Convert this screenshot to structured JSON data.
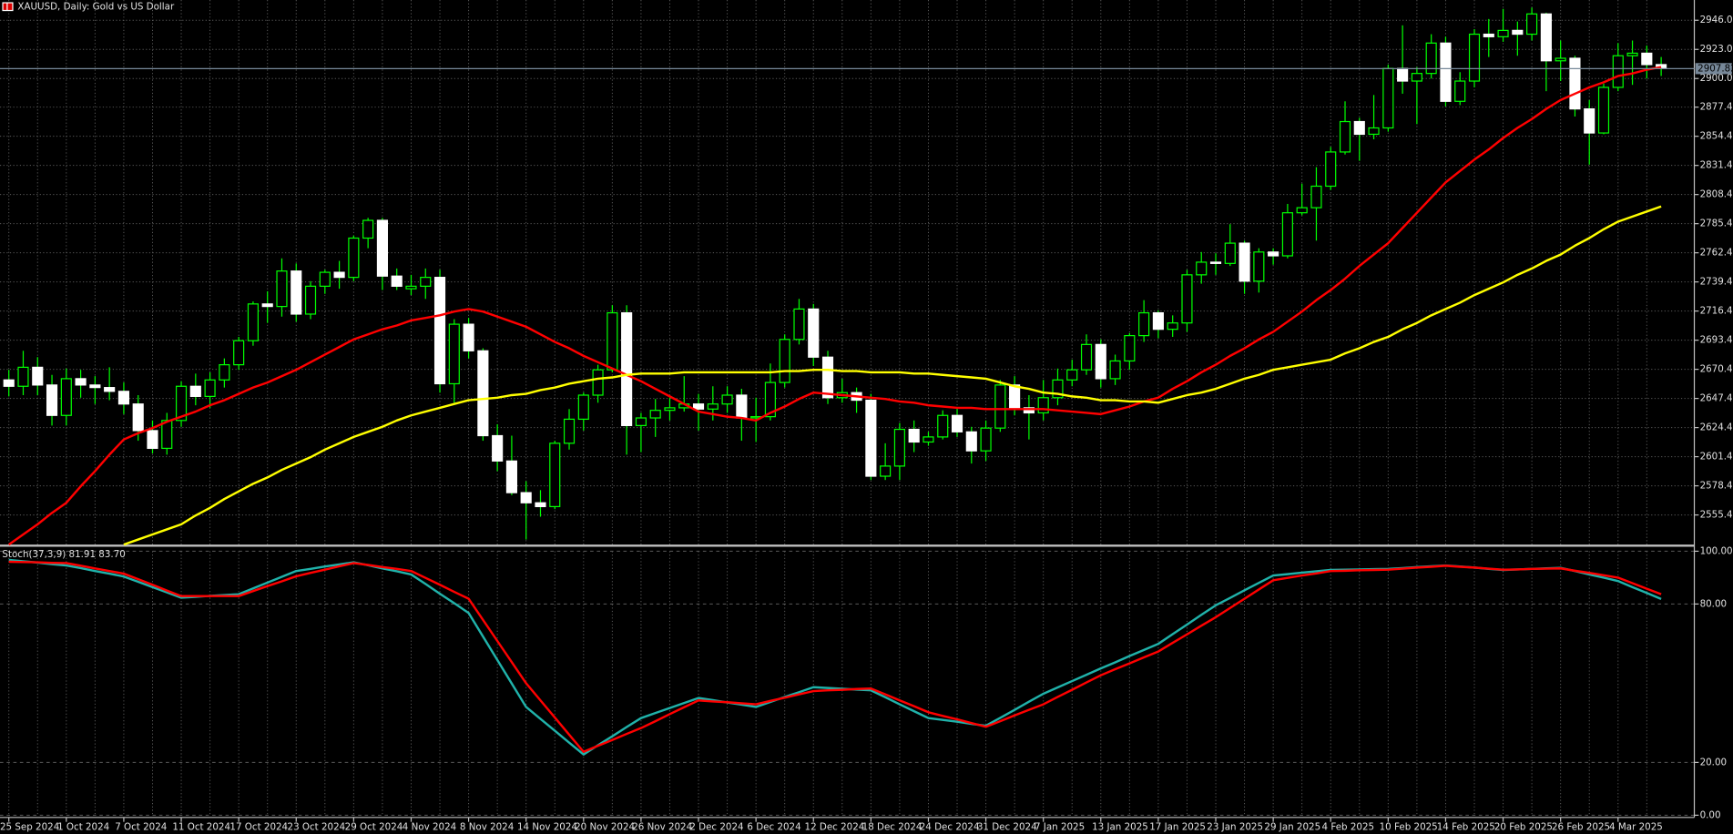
{
  "chart_data": [
    {
      "type": "candlestick",
      "title": "XAUUSD, Daily: Gold vs US Dollar",
      "categories": [
        "25 Sep 2024",
        null,
        null,
        null,
        "1 Oct 2024",
        null,
        null,
        null,
        "7 Oct 2024",
        null,
        null,
        null,
        "11 Oct 2024",
        null,
        null,
        null,
        "17 Oct 2024",
        null,
        null,
        null,
        "23 Oct 2024",
        null,
        null,
        null,
        "29 Oct 2024",
        null,
        null,
        null,
        "4 Nov 2024",
        null,
        null,
        null,
        "8 Nov 2024",
        null,
        null,
        null,
        "14 Nov 2024",
        null,
        null,
        null,
        "20 Nov 2024",
        null,
        null,
        null,
        "26 Nov 2024",
        null,
        null,
        null,
        "2 Dec 2024",
        null,
        null,
        null,
        "6 Dec 2024",
        null,
        null,
        null,
        "12 Dec 2024",
        null,
        null,
        null,
        "18 Dec 2024",
        null,
        null,
        null,
        "24 Dec 2024",
        null,
        null,
        null,
        "31 Dec 2024",
        null,
        null,
        null,
        "7 Jan 2025",
        null,
        null,
        null,
        "13 Jan 2025",
        null,
        null,
        null,
        "17 Jan 2025",
        null,
        null,
        null,
        "23 Jan 2025",
        null,
        null,
        null,
        "29 Jan 2025",
        null,
        null,
        null,
        "4 Feb 2025",
        null,
        null,
        null,
        "10 Feb 2025",
        null,
        null,
        null,
        "14 Feb 2025",
        null,
        null,
        null,
        "20 Feb 2025",
        null,
        null,
        null,
        "26 Feb 2025",
        null,
        null,
        null,
        "4 Mar 2025",
        null,
        null,
        null
      ],
      "open": [
        2662,
        2657,
        2672,
        2658,
        2634,
        2663,
        2658,
        2656,
        2653,
        2643,
        2622,
        2608,
        2630,
        2657,
        2649,
        2662,
        2674,
        2693,
        2722,
        2720,
        2748,
        2714,
        2736,
        2747,
        2743,
        2774,
        2788,
        2744,
        2734,
        2736,
        2743,
        2659,
        2706,
        2685,
        2618,
        2598,
        2573,
        2565,
        2562,
        2612,
        2631,
        2650,
        2670,
        2715,
        2626,
        2632,
        2638,
        2640,
        2643,
        2639,
        2643,
        2650,
        2632,
        2633,
        2660,
        2694,
        2718,
        2680,
        2648,
        2652,
        2646,
        2586,
        2594,
        2623,
        2613,
        2617,
        2634,
        2621,
        2606,
        2624,
        2658,
        2640,
        2636,
        2648,
        2662,
        2670,
        2690,
        2663,
        2677,
        2697,
        2715,
        2702,
        2707,
        2745,
        2755,
        2754,
        2770,
        2740,
        2763,
        2760,
        2794,
        2798,
        2815,
        2842,
        2866,
        2856,
        2861,
        2908,
        2898,
        2904,
        2928,
        2882,
        2898,
        2935,
        2933,
        2938,
        2935,
        2951,
        2914,
        2916,
        2876,
        2857,
        2893,
        2918,
        2920,
        2911
      ],
      "high": [
        2670,
        2685,
        2680,
        2666,
        2671,
        2670,
        2665,
        2672,
        2660,
        2650,
        2630,
        2636,
        2661,
        2667,
        2668,
        2679,
        2696,
        2724,
        2732,
        2758,
        2754,
        2740,
        2749,
        2756,
        2776,
        2790,
        2790,
        2750,
        2745,
        2750,
        2749,
        2710,
        2711,
        2687,
        2627,
        2618,
        2582,
        2575,
        2614,
        2639,
        2652,
        2674,
        2721,
        2721,
        2636,
        2647,
        2648,
        2665,
        2651,
        2657,
        2657,
        2655,
        2648,
        2675,
        2698,
        2726,
        2722,
        2685,
        2663,
        2656,
        2651,
        2612,
        2628,
        2630,
        2621,
        2638,
        2640,
        2625,
        2630,
        2662,
        2665,
        2650,
        2662,
        2671,
        2678,
        2698,
        2694,
        2682,
        2699,
        2725,
        2717,
        2713,
        2749,
        2763,
        2762,
        2785,
        2772,
        2766,
        2766,
        2801,
        2817,
        2830,
        2846,
        2882,
        2869,
        2887,
        2911,
        2942,
        2909,
        2935,
        2933,
        2905,
        2939,
        2947,
        2955,
        2945,
        2956,
        2952,
        2930,
        2918,
        2883,
        2896,
        2928,
        2930,
        2926,
        2917
      ],
      "low": [
        2649,
        2650,
        2650,
        2626,
        2626,
        2648,
        2643,
        2646,
        2635,
        2614,
        2604,
        2603,
        2625,
        2642,
        2640,
        2656,
        2670,
        2689,
        2707,
        2712,
        2708,
        2710,
        2730,
        2734,
        2740,
        2766,
        2733,
        2733,
        2729,
        2726,
        2652,
        2644,
        2679,
        2614,
        2590,
        2571,
        2536,
        2554,
        2560,
        2607,
        2622,
        2644,
        2668,
        2603,
        2605,
        2617,
        2630,
        2637,
        2622,
        2630,
        2636,
        2614,
        2613,
        2630,
        2656,
        2690,
        2673,
        2643,
        2644,
        2636,
        2583,
        2583,
        2583,
        2605,
        2610,
        2615,
        2617,
        2596,
        2598,
        2621,
        2634,
        2615,
        2630,
        2642,
        2657,
        2666,
        2656,
        2658,
        2670,
        2692,
        2695,
        2696,
        2700,
        2738,
        2745,
        2752,
        2730,
        2731,
        2753,
        2758,
        2792,
        2772,
        2812,
        2840,
        2835,
        2852,
        2858,
        2888,
        2864,
        2900,
        2878,
        2879,
        2893,
        2917,
        2929,
        2918,
        2930,
        2890,
        2898,
        2870,
        2832,
        2856,
        2890,
        2895,
        2900,
        2902
      ],
      "close": [
        2657,
        2672,
        2658,
        2634,
        2663,
        2658,
        2656,
        2653,
        2643,
        2622,
        2608,
        2630,
        2657,
        2649,
        2662,
        2674,
        2693,
        2722,
        2720,
        2748,
        2714,
        2736,
        2747,
        2743,
        2774,
        2788,
        2744,
        2736,
        2736,
        2743,
        2659,
        2706,
        2685,
        2618,
        2598,
        2573,
        2565,
        2562,
        2612,
        2631,
        2650,
        2670,
        2715,
        2626,
        2632,
        2638,
        2640,
        2643,
        2639,
        2643,
        2650,
        2632,
        2633,
        2660,
        2694,
        2718,
        2680,
        2648,
        2652,
        2646,
        2586,
        2594,
        2623,
        2613,
        2617,
        2634,
        2621,
        2606,
        2624,
        2658,
        2640,
        2636,
        2648,
        2662,
        2670,
        2690,
        2663,
        2677,
        2697,
        2715,
        2702,
        2707,
        2745,
        2755,
        2754,
        2770,
        2740,
        2763,
        2760,
        2794,
        2798,
        2815,
        2842,
        2866,
        2856,
        2861,
        2908,
        2898,
        2904,
        2928,
        2882,
        2898,
        2935,
        2933,
        2938,
        2935,
        2951,
        2914,
        2916,
        2876,
        2857,
        2893,
        2918,
        2920,
        2911,
        2907.82
      ],
      "up_color": "#00ff00",
      "down_color": "#ffffff",
      "series": [
        {
          "color": "#ff0000",
          "values": [
            2532,
            2540,
            2548,
            2557,
            2565,
            2578,
            2590,
            2603,
            2615,
            2620,
            2624,
            2629,
            2633,
            2637,
            2642,
            2646,
            2651,
            2656,
            2660,
            2665,
            2670,
            2676,
            2682,
            2688,
            2694,
            2698,
            2702,
            2705,
            2709,
            2711,
            2713,
            2716,
            2718,
            2716,
            2712,
            2708,
            2704,
            2698,
            2692,
            2687,
            2681,
            2676,
            2671,
            2666,
            2661,
            2655,
            2649,
            2643,
            2637,
            2635,
            2633,
            2632,
            2630,
            2636,
            2641,
            2647,
            2652,
            2651,
            2650,
            2649,
            2648,
            2647,
            2645,
            2644,
            2642,
            2641,
            2640,
            2640,
            2639,
            2639,
            2639,
            2639,
            2639,
            2638,
            2637,
            2636,
            2635,
            2638,
            2641,
            2645,
            2648,
            2655,
            2661,
            2668,
            2674,
            2681,
            2687,
            2694,
            2700,
            2708,
            2716,
            2725,
            2733,
            2742,
            2752,
            2761,
            2770,
            2782,
            2794,
            2806,
            2818,
            2827,
            2836,
            2844,
            2853,
            2861,
            2868,
            2876,
            2883,
            2888,
            2893,
            2897,
            2902,
            2904,
            2907,
            2909
          ]
        },
        {
          "color": "#ffff00",
          "values": [
            null,
            null,
            null,
            null,
            null,
            null,
            null,
            null,
            2532,
            2536,
            2540,
            2544,
            2548,
            2555,
            2561,
            2568,
            2574,
            2580,
            2585,
            2591,
            2596,
            2601,
            2607,
            2612,
            2617,
            2621,
            2625,
            2630,
            2634,
            2637,
            2640,
            2643,
            2646,
            2647,
            2648,
            2650,
            2651,
            2654,
            2656,
            2659,
            2661,
            2663,
            2664,
            2666,
            2667,
            2667,
            2667,
            2668,
            2668,
            2668,
            2668,
            2668,
            2668,
            2668,
            2669,
            2669,
            2670,
            2670,
            2669,
            2669,
            2668,
            2668,
            2668,
            2667,
            2667,
            2666,
            2665,
            2664,
            2663,
            2660,
            2657,
            2655,
            2652,
            2651,
            2649,
            2648,
            2646,
            2646,
            2645,
            2645,
            2644,
            2647,
            2650,
            2652,
            2655,
            2659,
            2663,
            2666,
            2670,
            2672,
            2674,
            2676,
            2678,
            2683,
            2687,
            2692,
            2696,
            2702,
            2707,
            2713,
            2718,
            2723,
            2729,
            2734,
            2739,
            2745,
            2750,
            2756,
            2761,
            2768,
            2774,
            2781,
            2787,
            2791,
            2795,
            2799
          ]
        }
      ],
      "current_price": 2907.82,
      "ylim": [
        2532,
        2962
      ],
      "yticks": [
        {
          "value": 2946,
          "label": "2946.00"
        },
        {
          "value": 2923,
          "label": "2923.00"
        },
        {
          "value": 2900,
          "label": "2900.00"
        },
        {
          "value": 2877.4,
          "label": "2877.40"
        },
        {
          "value": 2854.4,
          "label": "2854.40"
        },
        {
          "value": 2831.4,
          "label": "2831.40"
        },
        {
          "value": 2808.4,
          "label": "2808.40"
        },
        {
          "value": 2785.4,
          "label": "2785.40"
        },
        {
          "value": 2762.4,
          "label": "2762.40"
        },
        {
          "value": 2739.4,
          "label": "2739.40"
        },
        {
          "value": 2716.4,
          "label": "2716.40"
        },
        {
          "value": 2693.4,
          "label": "2693.40"
        },
        {
          "value": 2670.4,
          "label": "2670.40"
        },
        {
          "value": 2647.4,
          "label": "2647.40"
        },
        {
          "value": 2624.4,
          "label": "2624.40"
        },
        {
          "value": 2601.4,
          "label": "2601.40"
        },
        {
          "value": 2578.4,
          "label": "2578.40"
        },
        {
          "value": 2555.4,
          "label": "2555.40"
        }
      ],
      "grid": true
    },
    {
      "type": "line",
      "title": "Stoch(37,3,9) 81.91 83.70",
      "series": [
        {
          "color": "#20b2aa",
          "values": [
            96.7,
            96.2,
            95.7,
            95.1,
            94.6,
            93.6,
            92.5,
            91.5,
            90.4,
            88.4,
            86.4,
            84.4,
            82.4,
            82.7,
            83.1,
            83.4,
            83.7,
            85.9,
            88.1,
            90.3,
            92.5,
            93.3,
            94.2,
            95.0,
            95.8,
            94.7,
            93.5,
            92.4,
            91.2,
            87.6,
            83.9,
            80.3,
            76.6,
            67.7,
            58.8,
            49.9,
            41,
            36.5,
            32,
            27.5,
            23,
            26.5,
            29.9,
            33.4,
            36.8,
            38.7,
            40.6,
            42.5,
            44.4,
            43.6,
            42.7,
            41.9,
            41,
            42.9,
            44.8,
            46.6,
            48.5,
            48.2,
            47.9,
            47.6,
            47.3,
            44.7,
            42,
            39.4,
            36.8,
            36.1,
            35.4,
            34.6,
            33.9,
            36.9,
            39.9,
            43,
            46,
            48.4,
            50.8,
            53.2,
            55.6,
            57.9,
            60.3,
            62.6,
            64.9,
            68.6,
            72.2,
            75.9,
            79.5,
            82.3,
            85.2,
            88,
            90.8,
            91.3,
            91.9,
            92.4,
            92.9,
            93,
            93.1,
            93.2,
            93.3,
            93.6,
            94,
            94.3,
            94.6,
            94.2,
            93.8,
            93.3,
            92.9,
            93.1,
            93.3,
            93.5,
            93.7,
            92.5,
            91.2,
            90,
            88.7,
            86.4,
            84.2,
            81.91
          ]
        },
        {
          "color": "#ff0000",
          "values": [
            96,
            95.9,
            95.8,
            95.6,
            95.5,
            94.5,
            93.5,
            92.5,
            91.5,
            89.4,
            87.3,
            85.1,
            83,
            83,
            83,
            83,
            83,
            84.9,
            86.8,
            88.6,
            90.5,
            91.8,
            93,
            94.3,
            95.5,
            94.8,
            94,
            93.3,
            92.5,
            89.9,
            87.3,
            84.6,
            82,
            74,
            66,
            58,
            50,
            43.5,
            37,
            30.5,
            24,
            26.3,
            28.5,
            30.8,
            33,
            35.6,
            38.3,
            40.9,
            43.5,
            43.1,
            42.8,
            42.4,
            42,
            43.3,
            44.5,
            45.8,
            47,
            47.3,
            47.5,
            47.8,
            48,
            45.8,
            43.5,
            41.3,
            39,
            37.6,
            36.3,
            34.9,
            33.5,
            35.6,
            37.8,
            39.9,
            42,
            44.8,
            47.5,
            50.3,
            53,
            55.3,
            57.5,
            59.8,
            62,
            65.3,
            68.5,
            71.8,
            75,
            78.5,
            82,
            85.5,
            89,
            89.9,
            90.8,
            91.6,
            92.5,
            92.6,
            92.8,
            92.9,
            93,
            93.4,
            93.8,
            94.1,
            94.5,
            94.1,
            93.8,
            93.4,
            93,
            93.1,
            93.3,
            93.4,
            93.5,
            92.6,
            91.8,
            90.9,
            90,
            87.9,
            85.8,
            83.7
          ]
        }
      ],
      "ylim": [
        0,
        100
      ],
      "yticks": [
        {
          "value": 100,
          "label": "100.00"
        },
        {
          "value": 80,
          "label": "80.00"
        },
        {
          "value": 20,
          "label": "20.00"
        },
        {
          "value": 0,
          "label": "0.00"
        }
      ],
      "grid": true
    }
  ]
}
